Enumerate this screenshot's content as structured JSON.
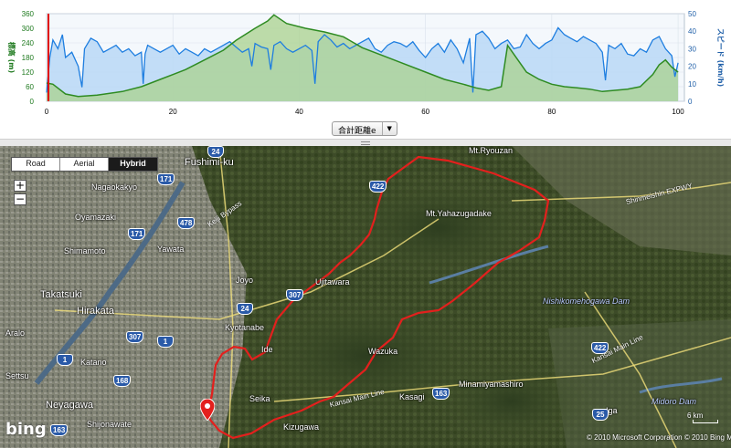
{
  "colors": {
    "elevation_line": "#2e8b22",
    "elevation_fill": "#a9d28d",
    "speed_line": "#1e7ee0",
    "speed_fill": "#b9d8f6",
    "route": "#e3201d",
    "cursor": "#e00000"
  },
  "chart_data": {
    "type": "line",
    "x_axis": {
      "ticks": [
        "0",
        "20",
        "40",
        "60",
        "80",
        "100"
      ],
      "range": [
        0,
        101
      ]
    },
    "y_left": {
      "title": "標高 (m)",
      "ticks": [
        "0",
        "60",
        "120",
        "180",
        "240",
        "300",
        "360"
      ],
      "range": [
        0,
        360
      ]
    },
    "y_right": {
      "title": "スピード (km/h)",
      "ticks": [
        "0",
        "10",
        "20",
        "30",
        "40",
        "50"
      ],
      "range": [
        0,
        50
      ]
    },
    "series": [
      {
        "axis": "left",
        "x": [
          0,
          1,
          3,
          5,
          8,
          12,
          15,
          18,
          20,
          22,
          25,
          28,
          30,
          33,
          35,
          36,
          38,
          41,
          44,
          47,
          50,
          53,
          56,
          60,
          63,
          66,
          68,
          70,
          72,
          73,
          76,
          78,
          80,
          82,
          84,
          86,
          88,
          90,
          92,
          94,
          96,
          97,
          98,
          99,
          100
        ],
        "values": [
          75,
          70,
          30,
          20,
          25,
          40,
          60,
          90,
          110,
          130,
          170,
          210,
          250,
          300,
          330,
          355,
          320,
          300,
          285,
          265,
          220,
          190,
          160,
          120,
          90,
          70,
          55,
          45,
          60,
          230,
          120,
          90,
          70,
          60,
          55,
          50,
          40,
          45,
          50,
          60,
          110,
          150,
          170,
          140,
          120
        ]
      },
      {
        "axis": "right",
        "x": [
          0,
          0.5,
          1,
          1.8,
          2.5,
          3,
          4,
          5,
          5.6,
          6,
          7,
          8,
          9,
          10,
          11,
          12,
          13,
          14,
          15,
          15.3,
          15.6,
          16,
          17,
          18,
          19,
          20,
          21,
          22,
          23,
          24,
          25,
          26,
          27,
          28,
          29,
          30,
          31,
          32,
          32.5,
          33,
          34,
          35,
          35.5,
          36,
          37,
          38,
          39,
          40,
          41,
          42,
          42.5,
          43,
          44,
          45,
          46,
          47,
          48,
          49,
          50,
          51,
          52,
          53,
          54,
          55,
          56,
          57,
          58,
          59,
          60,
          61,
          62,
          63,
          64,
          65,
          66,
          67,
          67.5,
          68,
          69,
          70,
          71,
          72,
          73,
          74,
          75,
          76,
          77,
          78,
          79,
          80,
          81,
          82,
          83,
          84,
          85,
          86,
          87,
          88,
          88.5,
          89,
          90,
          91,
          92,
          93,
          94,
          95,
          96,
          97,
          98,
          99,
          99.5,
          100
        ],
        "values": [
          5,
          25,
          35,
          30,
          38,
          25,
          28,
          20,
          8,
          30,
          36,
          34,
          28,
          30,
          32,
          28,
          30,
          26,
          28,
          10,
          27,
          32,
          30,
          28,
          30,
          32,
          27,
          30,
          28,
          26,
          30,
          28,
          30,
          32,
          34,
          31,
          28,
          30,
          20,
          33,
          31,
          30,
          18,
          32,
          34,
          30,
          28,
          30,
          32,
          29,
          10,
          34,
          38,
          35,
          31,
          33,
          30,
          32,
          34,
          36,
          30,
          28,
          32,
          34,
          33,
          31,
          34,
          29,
          25,
          30,
          33,
          28,
          35,
          30,
          22,
          36,
          5,
          38,
          40,
          36,
          30,
          33,
          35,
          30,
          31,
          38,
          33,
          30,
          33,
          35,
          42,
          38,
          36,
          34,
          37,
          35,
          33,
          28,
          12,
          32,
          30,
          33,
          27,
          26,
          30,
          28,
          35,
          37,
          30,
          26,
          14,
          22
        ]
      }
    ]
  },
  "chart": {
    "xaxis_select_label": "合計距離e",
    "xaxis_select_arrow": "▼"
  },
  "map": {
    "type_buttons": [
      "Road",
      "Aerial",
      "Hybrid"
    ],
    "active_type": "Hybrid",
    "zoom_in": "+",
    "zoom_out": "−",
    "logo": "bing",
    "copyright": "© 2010 Microsoft Corporation © 2010 Bing Maps",
    "scale": "6 km",
    "labels": {
      "fushimi": "Fushimi-ku",
      "nagaokakyo": "Nagaokakyo",
      "oyamazaki": "Oyamazaki",
      "shimamoto": "Shimamoto",
      "yawata": "Yawata",
      "takatsuki": "Takatsuki",
      "hirakata": "Hirakata",
      "katano": "Katano",
      "settsu": "Settsu",
      "neyagawa": "Neyagawa",
      "shijonawate": "Shijonawate",
      "kyotanabe": "Kyotanabe",
      "joyo": "Joyo",
      "ujitawara": "Ujitawara",
      "ide": "Ide",
      "seika": "Seika",
      "wazuka": "Wazuka",
      "kizugawa": "Kizugawa",
      "kasagi": "Kasagi",
      "minamiyamashiro": "Minamiyamashiro",
      "iga": "Iga",
      "mt_ryouzan": "Mt.Ryouzan",
      "mt_yahazu": "Mt.Yahazugadake",
      "shinmeishin": "Shinmeishin EXPWY",
      "nishikomehogawa": "Nishikomehogawa Dam",
      "midoro": "Midoro Dam",
      "kansai_main": "Kansai Main Line",
      "kansai_main2": "Kansai Main Line",
      "keiji_bypass": "Keiji Bypass",
      "aralo": "Aralo"
    },
    "routes": [
      "171",
      "24",
      "478",
      "171",
      "1",
      "307",
      "24",
      "1",
      "168",
      "163",
      "163",
      "163",
      "422",
      "307",
      "24",
      "422",
      "25"
    ]
  }
}
